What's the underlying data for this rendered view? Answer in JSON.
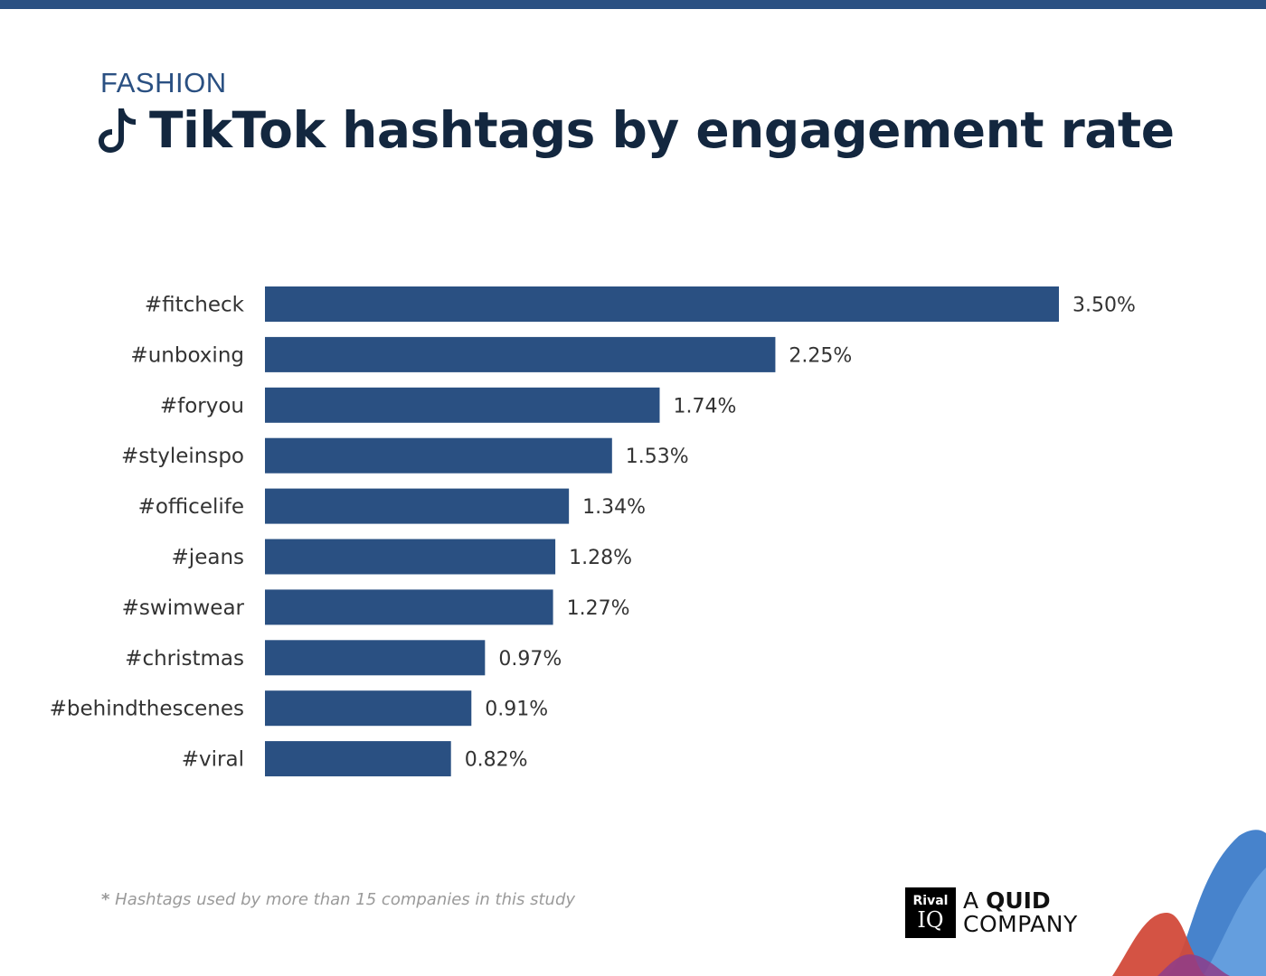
{
  "header": {
    "category": "FASHION",
    "title": "TikTok hashtags by engagement rate"
  },
  "chart_data": {
    "type": "bar",
    "orientation": "horizontal",
    "categories": [
      "#fitcheck",
      "#unboxing",
      "#foryou",
      "#styleinspo",
      "#officelife",
      "#jeans",
      "#swimwear",
      "#christmas",
      "#behindthescenes",
      "#viral"
    ],
    "values": [
      3.5,
      2.25,
      1.74,
      1.53,
      1.34,
      1.28,
      1.27,
      0.97,
      0.91,
      0.82
    ],
    "value_labels": [
      "3.50%",
      "2.25%",
      "1.74%",
      "1.53%",
      "1.34%",
      "1.28%",
      "1.27%",
      "0.97%",
      "0.91%",
      "0.82%"
    ],
    "unit": "%",
    "xlim": [
      0,
      3.5
    ],
    "grid": false,
    "legend": "none",
    "bar_color": "#2a5082"
  },
  "footer": {
    "footnote_star": "*",
    "footnote": "Hashtags used by more than 15 companies in this study",
    "brand_logo_top": "Rival",
    "brand_logo_bottom": "IQ",
    "brand_line1_a": "A",
    "brand_line1_b": "QUID",
    "brand_line2": "COMPANY"
  },
  "colors": {
    "accent": "#2a5082",
    "title": "#13273f",
    "decor_blue": "#3d7cc9",
    "decor_red": "#d24a3a",
    "decor_purple": "#8e3d8a"
  },
  "icons": {
    "title_icon": "tiktok-icon"
  }
}
